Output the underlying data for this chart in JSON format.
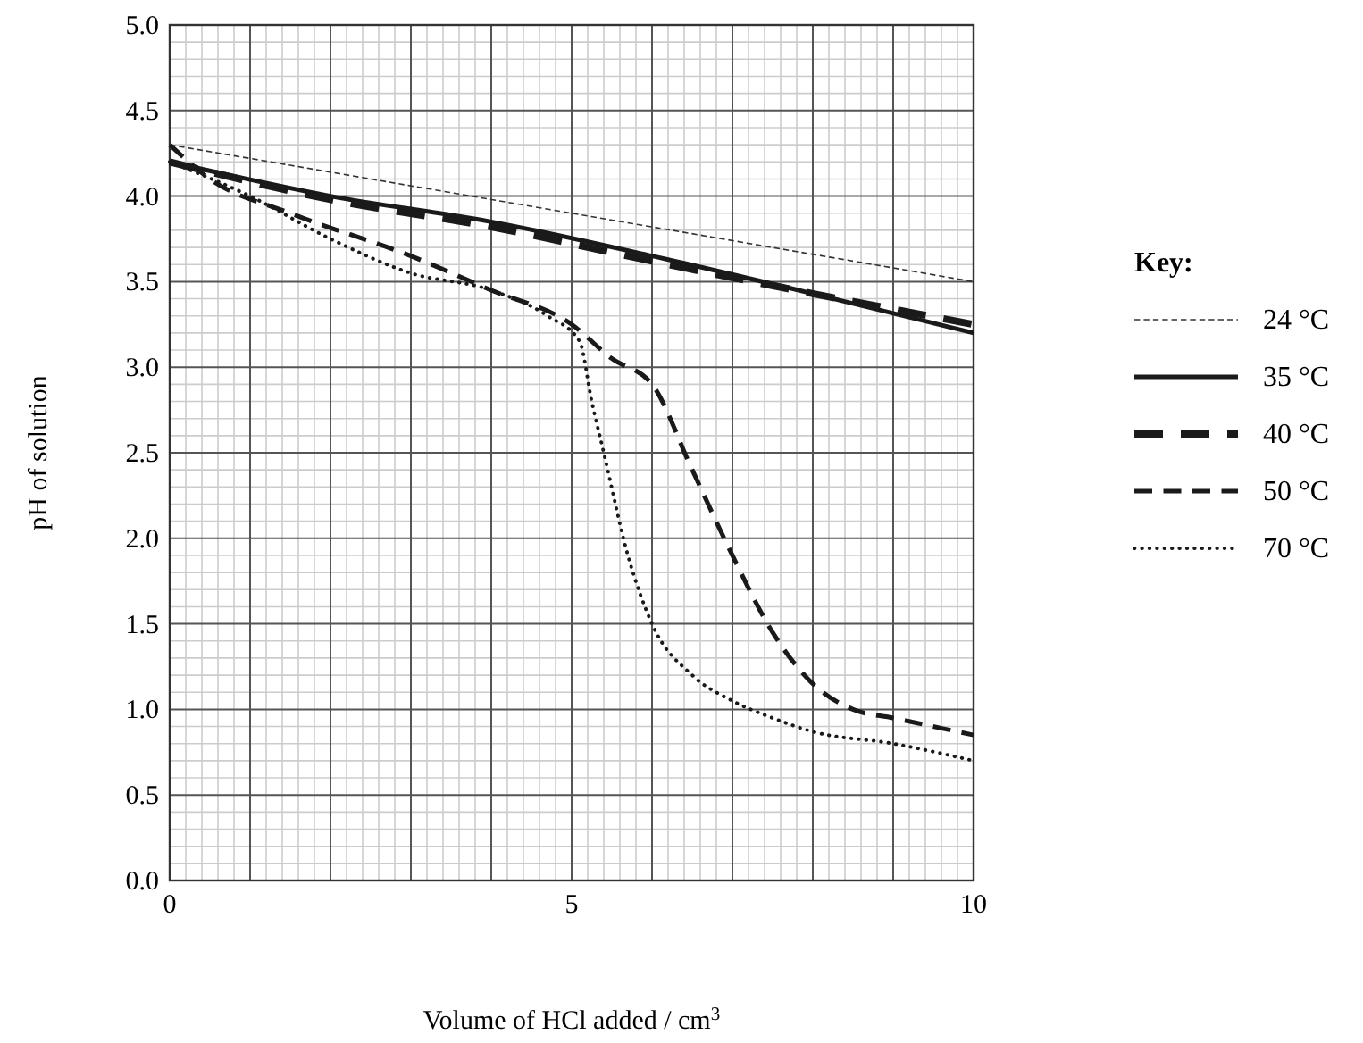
{
  "chart_data": {
    "type": "line",
    "xlabel": "Volume of HCl added / cm$^{3}$",
    "ylabel": "pH of solution",
    "legend_title": "Key:",
    "legend": "right",
    "grid": true,
    "xlim": [
      0,
      10
    ],
    "ylim": [
      0,
      5
    ],
    "xticks": [
      0,
      {
        "value": 1,
        "label": null
      },
      {
        "value": 2,
        "label": null
      },
      {
        "value": 3,
        "label": null
      },
      {
        "value": 4,
        "label": null
      },
      5,
      {
        "value": 6,
        "label": null
      },
      {
        "value": 7,
        "label": null
      },
      {
        "value": 8,
        "label": null
      },
      {
        "value": 9,
        "label": null
      },
      10
    ],
    "yticks": [
      {
        "value": 0,
        "label": "0.0"
      },
      {
        "value": 0.5,
        "label": "0.5"
      },
      {
        "value": 1,
        "label": "1.0"
      },
      {
        "value": 1.5,
        "label": "1.5"
      },
      {
        "value": 2,
        "label": "2.0"
      },
      {
        "value": 2.5,
        "label": "2.5"
      },
      {
        "value": 3,
        "label": "3.0"
      },
      {
        "value": 3.5,
        "label": "3.5"
      },
      {
        "value": 4,
        "label": "4.0"
      },
      {
        "value": 4.5,
        "label": "4.5"
      },
      {
        "value": 5,
        "label": "5.0"
      }
    ],
    "series": [
      {
        "name": "24 °C",
        "color": "#333333",
        "line_style": "dashed",
        "x": [
          0,
          10
        ],
        "values": [
          4.3,
          3.5
        ]
      },
      {
        "name": "35 °C",
        "color": "#1a1a1a",
        "line_style": "solid",
        "x": [
          0,
          2,
          4,
          6,
          8,
          10
        ],
        "values": [
          4.2,
          4.0,
          3.85,
          3.65,
          3.43,
          3.2
        ]
      },
      {
        "name": "40 °C",
        "color": "#1a1a1a",
        "line_style": "dashed",
        "x": [
          0,
          2,
          4,
          6,
          8,
          10
        ],
        "values": [
          4.2,
          3.98,
          3.82,
          3.62,
          3.43,
          3.25
        ]
      },
      {
        "name": "50 °C",
        "color": "#1a1a1a",
        "line_style": "dashed",
        "x": [
          0,
          0.5,
          1.5,
          3,
          4,
          5,
          5.5,
          6,
          6.5,
          7,
          7.5,
          8,
          8.5,
          9,
          10
        ],
        "values": [
          4.3,
          4.1,
          3.9,
          3.65,
          3.45,
          3.25,
          3.05,
          2.9,
          2.4,
          1.9,
          1.45,
          1.15,
          1.0,
          0.95,
          0.85
        ]
      },
      {
        "name": "70 °C",
        "color": "#1a1a1a",
        "line_style": "dotted",
        "x": [
          0,
          1,
          2,
          3,
          4,
          4.7,
          5.1,
          5.25,
          5.4,
          5.7,
          6,
          6.5,
          7,
          7.5,
          8,
          9,
          10
        ],
        "values": [
          4.2,
          4.0,
          3.75,
          3.55,
          3.45,
          3.3,
          3.15,
          2.8,
          2.5,
          1.9,
          1.5,
          1.2,
          1.05,
          0.95,
          0.87,
          0.8,
          0.7
        ]
      }
    ]
  }
}
